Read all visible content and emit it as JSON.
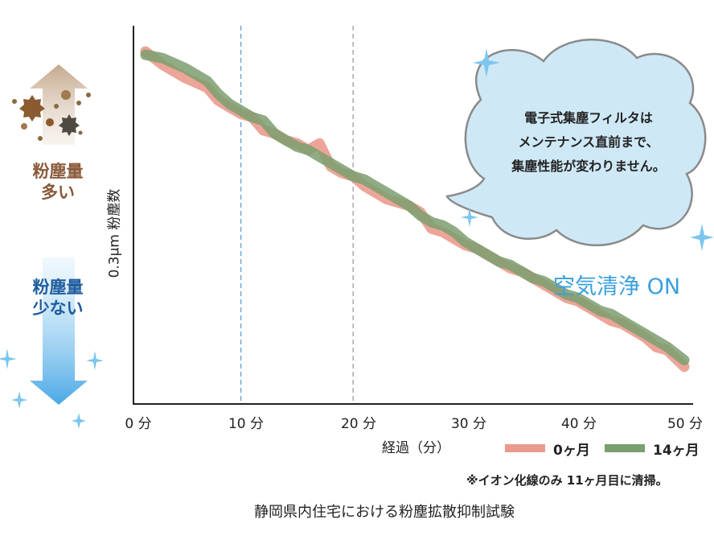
{
  "chart_data": {
    "type": "line",
    "title": "静岡県内住宅における粉塵拡散抑制試験",
    "xlabel": "経過（分）",
    "ylabel": "0.3μm 粉塵数",
    "xlim": [
      0,
      50
    ],
    "x_ticks": [
      "0 分",
      "10 分",
      "20 分",
      "30 分",
      "40 分",
      "50 分"
    ],
    "reference_lines": [
      10,
      20
    ],
    "ylim": [
      0,
      100
    ],
    "series": [
      {
        "name": "0ヶ月",
        "color": "#eb9b8e",
        "x": [
          1.5,
          3,
          5,
          7,
          8,
          9,
          10,
          11,
          12,
          13,
          14,
          15,
          16,
          17,
          18,
          19,
          20,
          21,
          22,
          23,
          24,
          25,
          26,
          27,
          28,
          29,
          30,
          31,
          32,
          33,
          34,
          35,
          36,
          37,
          38,
          39,
          40,
          41,
          42,
          43,
          44,
          45,
          46,
          47,
          48,
          49.5
        ],
        "values": [
          100,
          96,
          92,
          89,
          85,
          83,
          81,
          80,
          76,
          75,
          73,
          72,
          70,
          72,
          65,
          63,
          62,
          59,
          57,
          55,
          54,
          53,
          51,
          46,
          45,
          43,
          41,
          40,
          38,
          36,
          34,
          33,
          31,
          29,
          27,
          25,
          24,
          22,
          20,
          18,
          17,
          15,
          13,
          10,
          9,
          4
        ]
      },
      {
        "name": "14ヶ月",
        "color": "#7b9e6e",
        "x": [
          1.5,
          3,
          5,
          7,
          8,
          9,
          10,
          11,
          12,
          13,
          14,
          15,
          16,
          17,
          18,
          19,
          20,
          21,
          22,
          23,
          24,
          25,
          26,
          27,
          28,
          29,
          30,
          31,
          32,
          33,
          34,
          35,
          36,
          37,
          38,
          39,
          40,
          41,
          42,
          43,
          44,
          45,
          46,
          47,
          48,
          49.5
        ],
        "values": [
          99,
          98,
          95,
          91,
          87,
          84,
          82,
          80,
          79,
          75,
          73,
          71,
          70,
          68,
          66,
          64,
          62,
          61,
          59,
          57,
          55,
          53,
          50,
          48,
          47,
          45,
          42,
          40,
          38,
          36,
          35,
          33,
          31,
          30,
          28,
          26,
          25,
          23,
          21,
          20,
          18,
          16,
          14,
          12,
          10,
          6
        ]
      }
    ]
  },
  "labels": {
    "dust_more_1": "粉塵量",
    "dust_more_2": "多い",
    "dust_less_1": "粉塵量",
    "dust_less_2": "少ない",
    "bubble_line_1": "電子式集塵フィルタは",
    "bubble_line_2": "メンテナンス直前まで、",
    "bubble_line_3": "集塵性能が変わりません。",
    "air_clean": "空気清浄 ON",
    "legend_0": "0ヶ月",
    "legend_14": "14ヶ月",
    "note": "※イオン化線のみ 11ヶ月目に清掃。"
  },
  "colors": {
    "axis": "#222222",
    "ref_line_10": "#6aa8d8",
    "ref_line_20": "#aaaaaa",
    "brown_arrow": "#cdb39c",
    "blue_arrow": "#5fb3ea",
    "bubble_fill": "#cfe8f6",
    "bubble_stroke": "#8a8a8a",
    "air_clean": "#3aa0dc",
    "sparkle": "#7cc6ee"
  }
}
